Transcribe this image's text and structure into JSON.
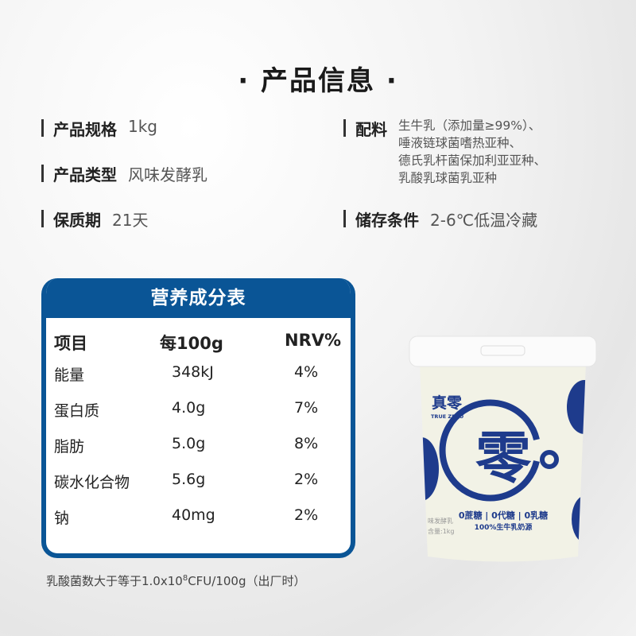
{
  "title": "· 产品信息 ·",
  "info": [
    {
      "label": "产品规格",
      "value": "1kg"
    },
    {
      "label": "产品类型",
      "value": "风味发酵乳"
    },
    {
      "label": "保质期",
      "value": "21天"
    },
    {
      "label": "配料",
      "lines": [
        "生牛乳（添加量≥99%）、",
        "唾液链球菌嗜热亚种、",
        "德氏乳杆菌保加利亚亚种、",
        "乳酸乳球菌乳亚种"
      ]
    },
    {
      "label": "储存条件",
      "value": "2-6℃低温冷藏"
    }
  ],
  "nutrition": {
    "title": "营养成分表",
    "headers": [
      "项目",
      "每100g",
      "NRV%"
    ],
    "rows": [
      [
        "能量",
        "348kJ",
        "4%"
      ],
      [
        "蛋白质",
        "4.0g",
        "7%"
      ],
      [
        "脂肪",
        "5.0g",
        "8%"
      ],
      [
        "碳水化合物",
        "5.6g",
        "2%"
      ],
      [
        "钠",
        "40mg",
        "2%"
      ]
    ]
  },
  "footnote": {
    "pre": "乳酸菌数大于等于1.0x10",
    "sup": "8",
    "post": "CFU/100g（出厂时）"
  },
  "product": {
    "brand": "真零",
    "brand_en": "TRUE ZERO",
    "logo_char": "零",
    "claims": "0蔗糖 | 0代糖 | 0乳糖",
    "claim2": "100%生牛乳奶源",
    "side1": "味发酵乳",
    "side2": "含量:1kg"
  },
  "colors": {
    "brand_blue": "#0a5596",
    "cup_blue": "#1e3b8c"
  }
}
